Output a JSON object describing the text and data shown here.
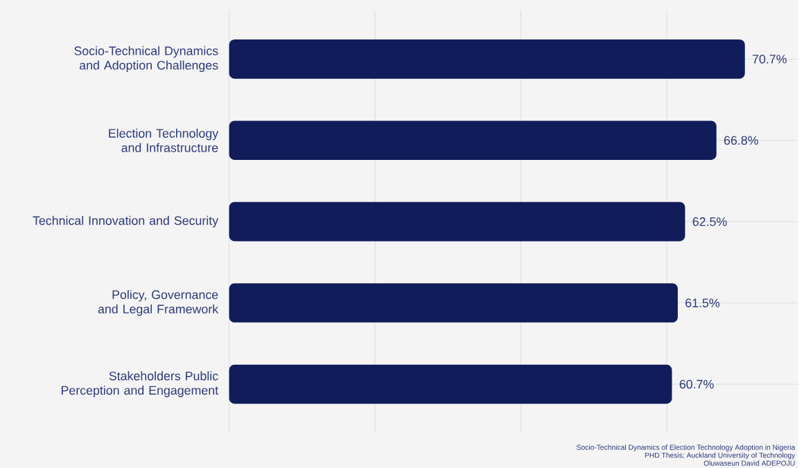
{
  "chart_data": {
    "type": "bar",
    "orientation": "horizontal",
    "categories": [
      "Socio-Technical Dynamics and Adoption Challenges",
      "Election Technology and Infrastructure",
      "Technical Innovation and Security",
      "Policy, Governance and Legal Framework",
      "Stakeholders Public Perception and Engagement"
    ],
    "values": [
      70.7,
      66.8,
      62.5,
      61.5,
      60.7
    ],
    "value_labels": [
      "70.7%",
      "66.8%",
      "62.5%",
      "61.5%",
      "60.7%"
    ],
    "color": "#111d5a",
    "xlim": [
      0,
      78
    ],
    "xticks": [
      {
        "value": 0,
        "label": null
      },
      {
        "value": 20,
        "label": null
      },
      {
        "value": 40,
        "label": null
      },
      {
        "value": 60,
        "label": null
      }
    ],
    "tick_labels": "y",
    "grid": true,
    "annotations": [
      "Socio-Technical Dynamics of Election Technology Adoption in Nigeria",
      "PHD Thesis; Auckland University of Technology",
      "Oluwaseun David ADEPOJU"
    ]
  }
}
